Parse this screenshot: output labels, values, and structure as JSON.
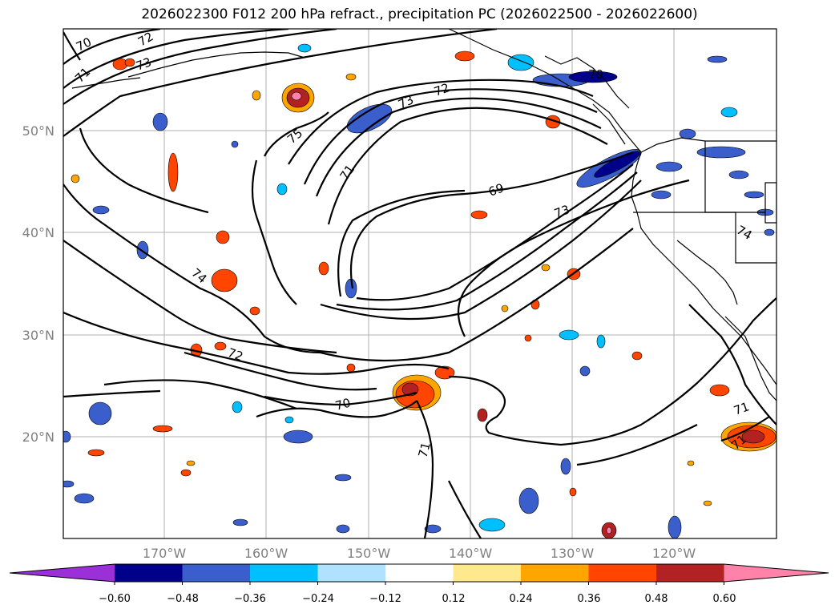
{
  "title": "2026022300 F012 200 hPa refract., precipitation PC (2026022500 - 2026022600)",
  "lat_labels": [
    "50°N",
    "40°N",
    "30°N",
    "20°N"
  ],
  "lon_labels": [
    "170°W",
    "160°W",
    "150°W",
    "140°W",
    "130°W",
    "120°W"
  ],
  "contour_labels": [
    "70",
    "72",
    "71",
    "73",
    "75",
    "73",
    "72",
    "70",
    "71",
    "69",
    "73",
    "74",
    "74",
    "72",
    "70",
    "71",
    "71",
    "71"
  ],
  "colorbar": {
    "ticks": [
      "−0.60",
      "−0.48",
      "−0.36",
      "−0.24",
      "−0.12",
      "0.12",
      "0.24",
      "0.36",
      "0.48",
      "0.60"
    ],
    "colors": [
      "#9b30d9",
      "#00008b",
      "#3a5fcd",
      "#00bfff",
      "#b0e2ff",
      "#ffffff",
      "#ffe98c",
      "#ffa500",
      "#ff4500",
      "#b22222",
      "#ff82ab"
    ]
  }
}
